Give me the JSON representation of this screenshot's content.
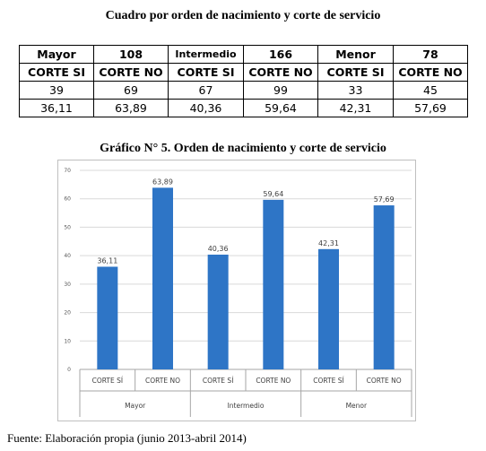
{
  "table": {
    "title": "Cuadro por orden de nacimiento y corte de servicio",
    "header": [
      "Mayor",
      "108",
      "Intermedio",
      "166",
      "Menor",
      "78"
    ],
    "subheader": [
      "CORTE SI",
      "CORTE NO",
      "CORTE SI",
      "CORTE NO",
      "CORTE SI",
      "CORTE NO"
    ],
    "counts": [
      "39",
      "69",
      "67",
      "99",
      "33",
      "45"
    ],
    "percents": [
      "36,11",
      "63,89",
      "40,36",
      "59,64",
      "42,31",
      "57,69"
    ]
  },
  "chart_data": {
    "type": "bar",
    "title": "Gráfico N° 5. Orden de nacimiento y corte de servicio",
    "groups": [
      "Mayor",
      "Intermedio",
      "Menor"
    ],
    "categories": [
      "CORTE SÍ",
      "CORTE NO",
      "CORTE SÍ",
      "CORTE NO",
      "CORTE SÍ",
      "CORTE NO"
    ],
    "values": [
      36.11,
      63.89,
      40.36,
      59.64,
      42.31,
      57.69
    ],
    "value_labels": [
      "36,11",
      "63,89",
      "40,36",
      "59,64",
      "42,31",
      "57,69"
    ],
    "y_ticks": [
      "0",
      "10",
      "20",
      "30",
      "40",
      "50",
      "60",
      "70"
    ],
    "ylim": [
      0,
      70
    ],
    "grid": true,
    "bar_color": "#2e75c6",
    "grid_color": "#d9d9d9"
  },
  "footer": "Fuente: Elaboración propia (junio 2013-abril 2014)"
}
